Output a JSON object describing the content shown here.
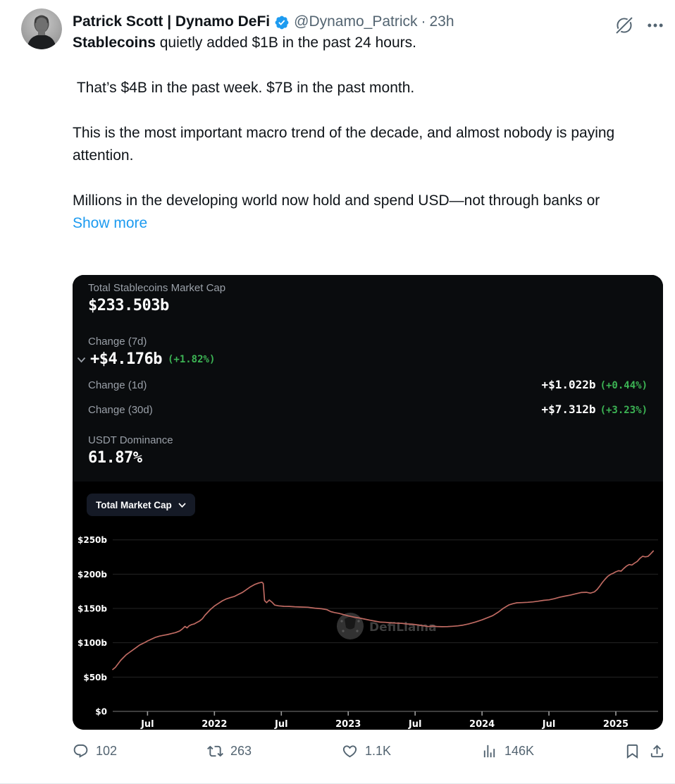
{
  "header": {
    "name": "Patrick Scott | Dynamo DeFi",
    "handle": "@Dynamo_Patrick",
    "separator": "·",
    "time": "23h"
  },
  "body": {
    "lead_bold": "Stablecoins",
    "lead_rest": " quietly added $1B in the past 24 hours.",
    "p2": " That’s $4B in the past week. $7B in the past month.",
    "p3": "This is the most important macro trend of the decade, and almost nobody is paying attention.",
    "p4": "Millions in the developing world now hold and spend USD—not through banks or",
    "show_more": "Show more"
  },
  "card": {
    "total": {
      "label": "Total Stablecoins Market Cap",
      "value": "$233.503b"
    },
    "change7d": {
      "label": "Change (7d)",
      "value": "+$4.176b",
      "pct": "(+1.82%)"
    },
    "change1d": {
      "label": "Change (1d)",
      "value": "+$1.022b",
      "pct": "(+0.44%)"
    },
    "change30d": {
      "label": "Change (30d)",
      "value": "+$7.312b",
      "pct": "(+3.23%)"
    },
    "dominance": {
      "label": "USDT Dominance",
      "value": "61.87%"
    },
    "dropdown_label": "Total Market Cap",
    "watermark": "DefiLlama"
  },
  "actions": {
    "reply": "102",
    "repost": "263",
    "like": "1.1K",
    "views": "146K"
  },
  "icons": {
    "grok": "slashed-circle",
    "more": "ellipsis",
    "verified": "blue-check-seal",
    "reply": "speech-bubble",
    "repost": "retweet-arrows",
    "like": "heart-outline",
    "views": "bar-chart",
    "bookmark": "bookmark-outline",
    "share": "arrow-up-from-tray",
    "chevron": "chevron-down"
  },
  "colors": {
    "accent_blue": "#1d9bf0",
    "green": "#3cb454",
    "line": "#bf6a62",
    "muted": "#536471",
    "stats_bg": "#0a0c0e",
    "chart_bg": "#000000"
  },
  "chart_data": {
    "type": "line",
    "title": "Total Stablecoins Market Cap",
    "xlabel": "",
    "ylabel": "",
    "grid": true,
    "legend": false,
    "xlim": [
      2021.24,
      2025.3
    ],
    "ylim": [
      0,
      261
    ],
    "x_ticks": [
      {
        "t": 2021.5,
        "label": "Jul"
      },
      {
        "t": 2022.0,
        "label": "2022"
      },
      {
        "t": 2022.5,
        "label": "Jul"
      },
      {
        "t": 2023.0,
        "label": "2023"
      },
      {
        "t": 2023.5,
        "label": "Jul"
      },
      {
        "t": 2024.0,
        "label": "2024"
      },
      {
        "t": 2024.5,
        "label": "Jul"
      },
      {
        "t": 2025.0,
        "label": "2025"
      }
    ],
    "y_ticks": [
      {
        "v": 0,
        "label": "$0"
      },
      {
        "v": 50,
        "label": "$50b"
      },
      {
        "v": 100,
        "label": "$100b"
      },
      {
        "v": 150,
        "label": "$150b"
      },
      {
        "v": 200,
        "label": "$200b"
      },
      {
        "v": 250,
        "label": "$250b"
      }
    ],
    "series": [
      {
        "name": "Total Market Cap",
        "color": "#bf6a62",
        "points": [
          [
            2021.24,
            61
          ],
          [
            2021.26,
            64
          ],
          [
            2021.28,
            69
          ],
          [
            2021.3,
            74
          ],
          [
            2021.32,
            78
          ],
          [
            2021.34,
            82
          ],
          [
            2021.36,
            85
          ],
          [
            2021.38,
            88
          ],
          [
            2021.4,
            91
          ],
          [
            2021.42,
            94
          ],
          [
            2021.44,
            97
          ],
          [
            2021.46,
            99
          ],
          [
            2021.48,
            101
          ],
          [
            2021.5,
            103
          ],
          [
            2021.53,
            105.5
          ],
          [
            2021.56,
            108
          ],
          [
            2021.59,
            109.5
          ],
          [
            2021.62,
            110.5
          ],
          [
            2021.65,
            111.5
          ],
          [
            2021.68,
            113
          ],
          [
            2021.71,
            114.5
          ],
          [
            2021.74,
            117
          ],
          [
            2021.76,
            120
          ],
          [
            2021.78,
            124
          ],
          [
            2021.795,
            122
          ],
          [
            2021.81,
            125
          ],
          [
            2021.83,
            127
          ],
          [
            2021.85,
            128
          ],
          [
            2021.87,
            130
          ],
          [
            2021.89,
            132
          ],
          [
            2021.91,
            135
          ],
          [
            2021.93,
            140
          ],
          [
            2021.95,
            144
          ],
          [
            2021.97,
            148
          ],
          [
            2022.0,
            153
          ],
          [
            2022.03,
            157
          ],
          [
            2022.06,
            161
          ],
          [
            2022.09,
            164
          ],
          [
            2022.12,
            166
          ],
          [
            2022.15,
            168
          ],
          [
            2022.18,
            171
          ],
          [
            2022.21,
            174
          ],
          [
            2022.24,
            178
          ],
          [
            2022.27,
            182
          ],
          [
            2022.3,
            185
          ],
          [
            2022.33,
            187
          ],
          [
            2022.355,
            188
          ],
          [
            2022.365,
            186
          ],
          [
            2022.375,
            161
          ],
          [
            2022.39,
            158
          ],
          [
            2022.41,
            162
          ],
          [
            2022.43,
            159
          ],
          [
            2022.45,
            155
          ],
          [
            2022.48,
            154
          ],
          [
            2022.52,
            153.5
          ],
          [
            2022.56,
            153.5
          ],
          [
            2022.6,
            153
          ],
          [
            2022.65,
            152.5
          ],
          [
            2022.7,
            152
          ],
          [
            2022.75,
            150.5
          ],
          [
            2022.8,
            149.5
          ],
          [
            2022.84,
            148
          ],
          [
            2022.87,
            145
          ],
          [
            2022.9,
            143.5
          ],
          [
            2022.93,
            142.5
          ],
          [
            2022.96,
            141
          ],
          [
            2023.0,
            139
          ],
          [
            2023.04,
            137.5
          ],
          [
            2023.08,
            136.5
          ],
          [
            2023.12,
            135
          ],
          [
            2023.16,
            133.5
          ],
          [
            2023.2,
            132
          ],
          [
            2023.24,
            130.5
          ],
          [
            2023.28,
            130
          ],
          [
            2023.32,
            129
          ],
          [
            2023.36,
            128.5
          ],
          [
            2023.4,
            128
          ],
          [
            2023.44,
            127
          ],
          [
            2023.48,
            126.5
          ],
          [
            2023.52,
            125.5
          ],
          [
            2023.56,
            124.5
          ],
          [
            2023.6,
            123.5
          ],
          [
            2023.63,
            124.5
          ],
          [
            2023.66,
            124
          ],
          [
            2023.7,
            123.8
          ],
          [
            2023.74,
            124
          ],
          [
            2023.78,
            124.5
          ],
          [
            2023.82,
            125
          ],
          [
            2023.86,
            126
          ],
          [
            2023.9,
            127.5
          ],
          [
            2023.95,
            130
          ],
          [
            2024.0,
            133
          ],
          [
            2024.04,
            136
          ],
          [
            2024.08,
            139
          ],
          [
            2024.12,
            144
          ],
          [
            2024.16,
            150
          ],
          [
            2024.2,
            155
          ],
          [
            2024.23,
            157
          ],
          [
            2024.26,
            158.5
          ],
          [
            2024.3,
            159
          ],
          [
            2024.34,
            159.5
          ],
          [
            2024.38,
            160
          ],
          [
            2024.42,
            161
          ],
          [
            2024.46,
            162
          ],
          [
            2024.5,
            162.5
          ],
          [
            2024.54,
            164
          ],
          [
            2024.58,
            166
          ],
          [
            2024.62,
            167.5
          ],
          [
            2024.66,
            169
          ],
          [
            2024.7,
            171
          ],
          [
            2024.74,
            173
          ],
          [
            2024.78,
            173.5
          ],
          [
            2024.81,
            172.5
          ],
          [
            2024.84,
            174.5
          ],
          [
            2024.86,
            178
          ],
          [
            2024.88,
            183
          ],
          [
            2024.9,
            188.5
          ],
          [
            2024.92,
            193
          ],
          [
            2024.94,
            197
          ],
          [
            2024.96,
            199.5
          ],
          [
            2024.98,
            201
          ],
          [
            2025.0,
            203
          ],
          [
            2025.02,
            204.5
          ],
          [
            2025.04,
            204
          ],
          [
            2025.06,
            208
          ],
          [
            2025.08,
            211.5
          ],
          [
            2025.1,
            214
          ],
          [
            2025.12,
            213.5
          ],
          [
            2025.14,
            216.5
          ],
          [
            2025.16,
            219
          ],
          [
            2025.18,
            223.5
          ],
          [
            2025.2,
            226.5
          ],
          [
            2025.22,
            225.5
          ],
          [
            2025.24,
            226
          ],
          [
            2025.26,
            229.5
          ],
          [
            2025.28,
            233.5
          ]
        ]
      }
    ]
  }
}
